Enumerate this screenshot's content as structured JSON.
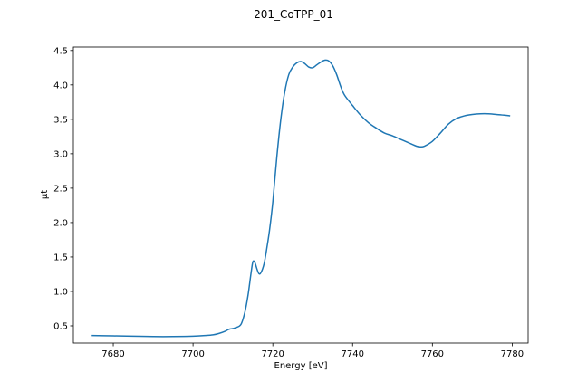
{
  "chart_data": {
    "type": "line",
    "title": "201_CoTPP_01",
    "xlabel": "Energy [eV]",
    "ylabel": "μt",
    "xlim": [
      7670,
      7784
    ],
    "ylim": [
      0.25,
      4.55
    ],
    "xticks": [
      7680,
      7700,
      7720,
      7740,
      7760,
      7780
    ],
    "yticks": [
      0.5,
      1.0,
      1.5,
      2.0,
      2.5,
      3.0,
      3.5,
      4.0,
      4.5
    ],
    "xtick_labels": [
      "7680",
      "7700",
      "7720",
      "7740",
      "7760",
      "7780"
    ],
    "ytick_labels": [
      "0.5",
      "1.0",
      "1.5",
      "2.0",
      "2.5",
      "3.0",
      "3.5",
      "4.0",
      "4.5"
    ],
    "grid": false,
    "series": [
      {
        "color": "#1f77b4",
        "x": [
          7674.6,
          7680,
          7685,
          7690,
          7695,
          7700,
          7703,
          7705,
          7706.5,
          7708,
          7709,
          7710.5,
          7712,
          7713,
          7713.8,
          7714.5,
          7715,
          7715.5,
          7716,
          7716.5,
          7717,
          7717.8,
          7718.5,
          7719.2,
          7720,
          7721,
          7722,
          7723,
          7724,
          7725,
          7726,
          7727,
          7728,
          7729,
          7730,
          7731,
          7732,
          7733,
          7734,
          7735,
          7736,
          7737,
          7738,
          7740,
          7742,
          7744,
          7746,
          7748,
          7750,
          7752,
          7754,
          7756,
          7757,
          7758,
          7760,
          7762,
          7764,
          7766,
          7768,
          7770,
          7772,
          7774,
          7776,
          7778,
          7779.5
        ],
        "y": [
          0.36,
          0.355,
          0.35,
          0.345,
          0.345,
          0.35,
          0.36,
          0.37,
          0.39,
          0.42,
          0.45,
          0.47,
          0.52,
          0.7,
          0.95,
          1.25,
          1.43,
          1.42,
          1.33,
          1.26,
          1.27,
          1.4,
          1.63,
          1.9,
          2.3,
          2.95,
          3.5,
          3.9,
          4.15,
          4.26,
          4.32,
          4.34,
          4.31,
          4.26,
          4.25,
          4.29,
          4.33,
          4.36,
          4.35,
          4.28,
          4.15,
          3.98,
          3.85,
          3.7,
          3.56,
          3.45,
          3.37,
          3.3,
          3.26,
          3.21,
          3.16,
          3.11,
          3.1,
          3.11,
          3.18,
          3.3,
          3.43,
          3.51,
          3.55,
          3.57,
          3.58,
          3.58,
          3.57,
          3.56,
          3.55
        ]
      }
    ]
  }
}
